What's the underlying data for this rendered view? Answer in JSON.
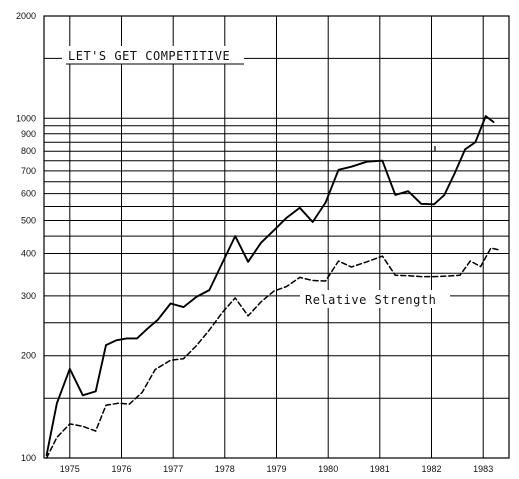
{
  "chart_data": {
    "type": "line",
    "title": "",
    "xlabel": "",
    "ylabel": "",
    "y_scale": "log",
    "ylim": [
      100,
      2000
    ],
    "xlim": [
      1974.5,
      1983.5
    ],
    "grid": true,
    "y_ticks": [
      100,
      200,
      300,
      400,
      500,
      600,
      700,
      800,
      900,
      1000,
      2000
    ],
    "y_tick_labels": [
      "100",
      "200",
      "300",
      "400",
      "500",
      "600",
      "700",
      "800",
      "900",
      "1000",
      "2000"
    ],
    "x_tick_labels": [
      "1975",
      "1976",
      "1977",
      "1978",
      "1979",
      "1980",
      "1981",
      "1982",
      "1983"
    ],
    "annotations": {
      "heading": "LET'S GET COMPETITIVE",
      "relative_strength_label": "Relative Strength"
    },
    "series": [
      {
        "style": "solid",
        "x": [
          1974.55,
          1974.75,
          1975.0,
          1975.25,
          1975.5,
          1975.7,
          1975.9,
          1976.1,
          1976.3,
          1976.5,
          1976.7,
          1976.95,
          1977.2,
          1977.45,
          1977.7,
          1977.95,
          1978.2,
          1978.45,
          1978.7,
          1978.95,
          1979.2,
          1979.45,
          1979.7,
          1979.95,
          1980.2,
          1980.45,
          1980.75,
          1981.05,
          1981.3,
          1981.55,
          1981.8,
          1982.05,
          1982.25,
          1982.45,
          1982.65,
          1982.85,
          1983.05,
          1983.2
        ],
        "y": [
          102,
          145,
          183,
          153,
          157,
          215,
          222,
          225,
          225,
          240,
          255,
          285,
          278,
          298,
          312,
          375,
          450,
          378,
          430,
          468,
          510,
          545,
          495,
          565,
          705,
          720,
          745,
          750,
          595,
          610,
          560,
          558,
          595,
          690,
          810,
          850,
          1015,
          975
        ]
      },
      {
        "style": "dashed",
        "x": [
          1974.55,
          1974.75,
          1975.0,
          1975.25,
          1975.5,
          1975.7,
          1975.95,
          1976.15,
          1976.4,
          1976.65,
          1976.95,
          1977.2,
          1977.45,
          1977.7,
          1977.95,
          1978.2,
          1978.45,
          1978.7,
          1978.95,
          1979.2,
          1979.45,
          1979.7,
          1979.95,
          1980.2,
          1980.45,
          1980.75,
          1981.05,
          1981.3,
          1981.55,
          1981.8,
          1982.05,
          1982.3,
          1982.55,
          1982.75,
          1982.95,
          1983.15,
          1983.3
        ],
        "y": [
          100,
          115,
          126,
          124,
          120,
          143,
          145,
          144,
          156,
          182,
          194,
          196,
          214,
          238,
          268,
          296,
          262,
          288,
          310,
          320,
          340,
          333,
          332,
          380,
          365,
          378,
          393,
          345,
          344,
          342,
          342,
          343,
          345,
          380,
          366,
          415,
          410
        ]
      }
    ]
  }
}
